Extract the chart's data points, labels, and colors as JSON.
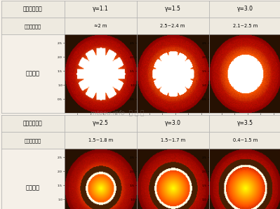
{
  "row1_label1": "空气过量系数",
  "row1_label2": "火焰区域大小",
  "row1_label3": "火焰照片",
  "row2_label1": "空气过量系数",
  "row2_label2": "火焰区域大小",
  "row2_label3": "火焰照片",
  "col_headers_top": [
    "γ=1.1",
    "γ=1.5",
    "γ=3.0"
  ],
  "col_sizes_top": [
    "≈2 m",
    "2.5~2.4 m",
    "2.1~2.5 m"
  ],
  "col_headers_bot": [
    "γ=2.5",
    "γ=3.0",
    "γ=3.5"
  ],
  "col_sizes_bot": [
    "1.5~1.8 m",
    "1.5~1.7 m",
    "0.4~1.5 m"
  ],
  "bg_color": "#f5f0e8",
  "header_bg": "#eeeae0",
  "cell_label_bg": "#f5f0e8",
  "border_color": "#aaaaaa",
  "xtick_vals": [
    0.5,
    1.0,
    1.5,
    2.0,
    2.5
  ],
  "ytick_vals": [
    0.5,
    1.0,
    1.5,
    2.0,
    2.5
  ],
  "axis_max": 2.8
}
